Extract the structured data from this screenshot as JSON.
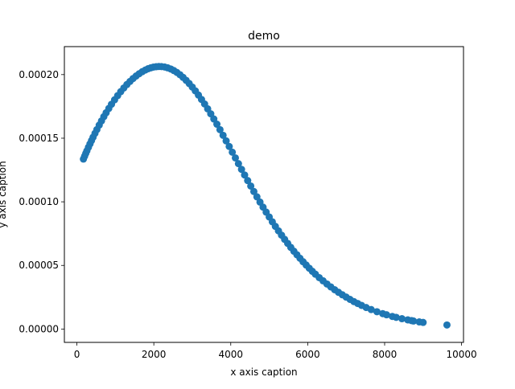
{
  "chart_data": {
    "type": "scatter",
    "title": "demo",
    "xlabel": "x axis caption",
    "ylabel": "y axis caption",
    "xlim": [
      -325,
      10050
    ],
    "ylim": [
      -1.05e-05,
      0.000222
    ],
    "xticks": [
      0,
      2000,
      4000,
      6000,
      8000,
      10000
    ],
    "xtick_labels": [
      "0",
      "2000",
      "4000",
      "6000",
      "8000",
      "10000"
    ],
    "yticks": [
      0.0,
      5e-05,
      0.0001,
      0.00015,
      0.0002
    ],
    "ytick_labels": [
      "0.00000",
      "0.00005",
      "0.00010",
      "0.00015",
      "0.00020"
    ],
    "grid": false,
    "legend": "none",
    "marker_color": "#1f77b4",
    "series": [
      {
        "x": [
          170,
          200,
          230,
          260,
          300,
          340,
          380,
          420,
          470,
          520,
          580,
          640,
          700,
          760,
          830,
          900,
          980,
          1060,
          1140,
          1220,
          1300,
          1380,
          1460,
          1540,
          1620,
          1700,
          1780,
          1850,
          1920,
          1990,
          2060,
          2130,
          2200,
          2280,
          2360,
          2440,
          2520,
          2600,
          2680,
          2760,
          2840,
          2920,
          3000,
          3080,
          3160,
          3240,
          3320,
          3400,
          3480,
          3560,
          3640,
          3720,
          3800,
          3880,
          3960,
          4040,
          4120,
          4200,
          4280,
          4360,
          4440,
          4520,
          4600,
          4680,
          4760,
          4840,
          4920,
          5000,
          5080,
          5160,
          5240,
          5320,
          5400,
          5480,
          5560,
          5640,
          5720,
          5800,
          5880,
          5960,
          6040,
          6120,
          6200,
          6300,
          6400,
          6500,
          6600,
          6700,
          6800,
          6900,
          7000,
          7100,
          7200,
          7300,
          7400,
          7520,
          7650,
          7800,
          7950,
          8050,
          8200,
          8300,
          8450,
          8600,
          8700,
          8750,
          8900,
          9000,
          9620
        ],
        "y": [
          0.0001336,
          0.0001358,
          0.000138,
          0.0001401,
          0.0001428,
          0.0001455,
          0.0001481,
          0.0001507,
          0.0001538,
          0.0001568,
          0.0001603,
          0.0001636,
          0.0001669,
          0.00017,
          0.0001734,
          0.0001767,
          0.0001802,
          0.0001835,
          0.0001866,
          0.0001895,
          0.0001922,
          0.0001946,
          0.0001969,
          0.0001989,
          0.0002007,
          0.0002023,
          0.0002036,
          0.0002046,
          0.0002053,
          0.0002059,
          0.0002062,
          0.0002064,
          0.0002063,
          0.000206,
          0.0002053,
          0.0002044,
          0.0002032,
          0.0002017,
          0.0001999,
          0.0001978,
          0.0001955,
          0.000193,
          0.0001902,
          0.0001872,
          0.0001839,
          0.0001805,
          0.0001769,
          0.0001731,
          0.0001692,
          0.0001651,
          0.000161,
          0.0001567,
          0.0001523,
          0.0001479,
          0.0001435,
          0.000139,
          0.0001345,
          0.00013,
          0.0001255,
          0.0001211,
          0.0001167,
          0.0001124,
          0.0001081,
          0.0001039,
          9.98e-05,
          9.58e-05,
          9.19e-05,
          8.81e-05,
          8.43e-05,
          8.07e-05,
          7.72e-05,
          7.38e-05,
          7.05e-05,
          6.73e-05,
          6.42e-05,
          6.12e-05,
          5.84e-05,
          5.56e-05,
          5.29e-05,
          5.03e-05,
          4.78e-05,
          4.54e-05,
          4.31e-05,
          4.04e-05,
          3.79e-05,
          3.54e-05,
          3.31e-05,
          3.09e-05,
          2.89e-05,
          2.69e-05,
          2.51e-05,
          2.33e-05,
          2.16e-05,
          2.01e-05,
          1.86e-05,
          1.69e-05,
          1.53e-05,
          1.36e-05,
          1.21e-05,
          1.12e-05,
          9.9e-06,
          9.2e-06,
          8.1e-06,
          7.2e-06,
          6.6e-06,
          6.3e-06,
          5.6e-06,
          5.2e-06,
          3.2e-06
        ]
      }
    ]
  }
}
